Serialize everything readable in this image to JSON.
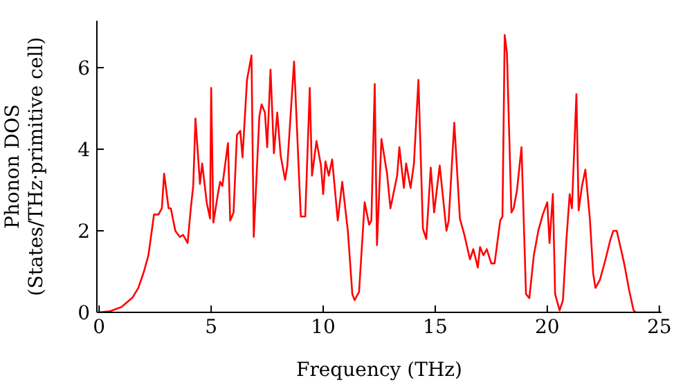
{
  "chart_data": {
    "type": "line",
    "xlabel": "Frequency (THz)",
    "ylabel": "Phonon DOS\n(States/THz·primitive cell)",
    "xlim": [
      -0.1,
      25.1
    ],
    "xticks": [
      0,
      5,
      10,
      15,
      20,
      25
    ],
    "ylim": [
      0,
      7.15
    ],
    "yticks": [
      0,
      2,
      4,
      6
    ],
    "grid": false,
    "legend": false,
    "marker": "none",
    "line_style": "solid",
    "series": [
      {
        "color": "#ff0000",
        "x": [
          0,
          0.5,
          1,
          1.5,
          1.75,
          2,
          2.2,
          2.35,
          2.45,
          2.65,
          2.8,
          2.9,
          3.1,
          3.2,
          3.4,
          3.6,
          3.75,
          3.95,
          4.1,
          4.2,
          4.3,
          4.5,
          4.6,
          4.8,
          4.95,
          5,
          5.1,
          5.3,
          5.4,
          5.5,
          5.75,
          5.85,
          6,
          6.15,
          6.3,
          6.4,
          6.6,
          6.8,
          6.9,
          7.15,
          7.25,
          7.4,
          7.5,
          7.65,
          7.8,
          7.95,
          8.1,
          8.3,
          8.4,
          8.7,
          9,
          9.2,
          9.4,
          9.5,
          9.7,
          9.9,
          10,
          10.1,
          10.25,
          10.4,
          10.65,
          10.85,
          11.1,
          11.3,
          11.4,
          11.6,
          11.85,
          12.05,
          12.15,
          12.3,
          12.4,
          12.6,
          12.85,
          13,
          13.3,
          13.4,
          13.6,
          13.7,
          13.9,
          14.05,
          14.25,
          14.45,
          14.6,
          14.8,
          14.95,
          15.2,
          15.5,
          15.6,
          15.85,
          16.1,
          16.3,
          16.55,
          16.7,
          16.9,
          17,
          17.15,
          17.3,
          17.5,
          17.65,
          17.9,
          18,
          18.1,
          18.2,
          18.4,
          18.5,
          18.65,
          18.85,
          19.05,
          19.2,
          19.4,
          19.6,
          19.8,
          20,
          20.1,
          20.25,
          20.35,
          20.55,
          20.7,
          20.85,
          21,
          21.1,
          21.3,
          21.4,
          21.55,
          21.7,
          21.9,
          22.05,
          22.15,
          22.35,
          22.6,
          22.8,
          22.95,
          23.1,
          23.35,
          23.45,
          23.65,
          23.85,
          23.95,
          25
        ],
        "values": [
          0,
          0.03,
          0.13,
          0.37,
          0.6,
          1,
          1.4,
          2,
          2.4,
          2.4,
          2.55,
          3.4,
          2.55,
          2.55,
          2,
          1.85,
          1.9,
          1.7,
          2.6,
          3.1,
          4.75,
          3.15,
          3.65,
          2.7,
          2.3,
          5.5,
          2.2,
          2.9,
          3.2,
          3.1,
          4.15,
          2.25,
          2.45,
          4.35,
          4.45,
          3.8,
          5.7,
          6.3,
          1.85,
          4.8,
          5.1,
          4.9,
          4.05,
          5.95,
          3.9,
          4.9,
          3.85,
          3.25,
          3.6,
          6.15,
          2.35,
          2.35,
          5.5,
          3.35,
          4.2,
          3.6,
          2.9,
          3.7,
          3.35,
          3.75,
          2.25,
          3.2,
          2,
          0.45,
          0.3,
          0.5,
          2.7,
          2.15,
          2.25,
          5.6,
          1.65,
          4.25,
          3.4,
          2.55,
          3.35,
          4.05,
          3.05,
          3.65,
          3.05,
          3.65,
          5.7,
          2.05,
          1.8,
          3.55,
          2.45,
          3.6,
          2,
          2.25,
          4.65,
          2.3,
          1.9,
          1.3,
          1.55,
          1.1,
          1.6,
          1.4,
          1.55,
          1.2,
          1.2,
          2.25,
          2.35,
          6.8,
          6.35,
          2.45,
          2.55,
          3,
          4.05,
          0.45,
          0.35,
          1.4,
          2,
          2.4,
          2.7,
          1.7,
          2.9,
          0.45,
          0.05,
          0.3,
          1.75,
          2.9,
          2.55,
          5.35,
          2.5,
          3.1,
          3.5,
          2.3,
          0.95,
          0.6,
          0.8,
          1.3,
          1.75,
          2,
          2,
          1.4,
          1.15,
          0.55,
          0.05,
          0,
          0
        ]
      }
    ]
  }
}
